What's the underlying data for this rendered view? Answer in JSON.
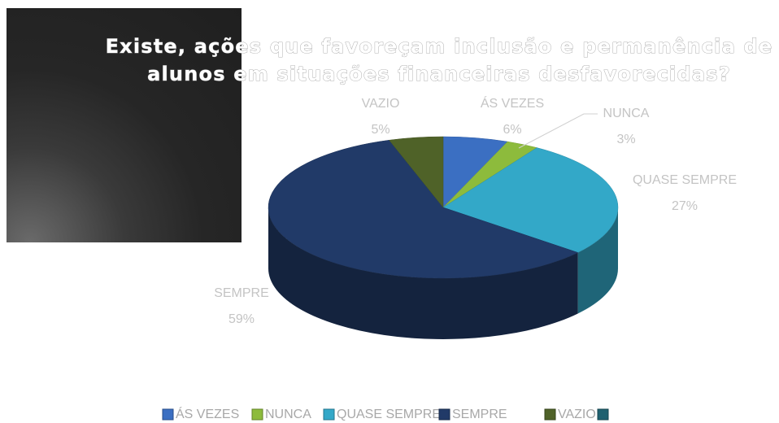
{
  "chart_data": {
    "type": "pie",
    "title": "Existe, ações que favoreçam inclusão e permanência de alunos em situações financeiras desfavorecidas?",
    "categories": [
      "ÁS VEZES",
      "NUNCA",
      "QUASE SEMPRE",
      "SEMPRE",
      "VAZIO",
      null
    ],
    "values": [
      6,
      3,
      27,
      59,
      5,
      0
    ],
    "value_labels": [
      "6%",
      "3%",
      "27%",
      "59%",
      "5%",
      null
    ],
    "colors": [
      "#3b6fc2",
      "#8dbb3c",
      "#33a8c8",
      "#213a68",
      "#4f6228",
      "#1f6170"
    ],
    "legend": "bottom"
  }
}
